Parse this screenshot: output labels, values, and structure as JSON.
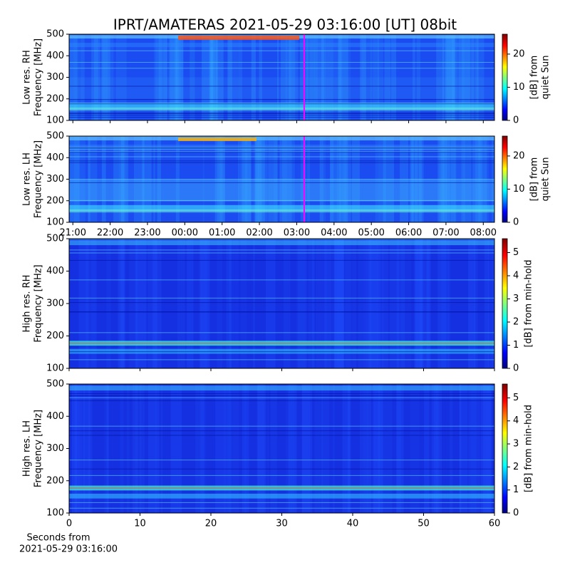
{
  "chart_data": [
    {
      "type": "heatmap",
      "title": "IPRT/AMATERAS 2021-05-29 03:16:00 [UT]   08bit",
      "ylabel": [
        "Low res. RH",
        "Frequency [MHz]"
      ],
      "xlim": [
        20.9,
        32.3
      ],
      "ylim": [
        100,
        500
      ],
      "yticks": [
        100,
        200,
        300,
        400,
        500
      ],
      "cursor": 27.2,
      "colorbar": {
        "label": [
          "[dB] from",
          "quiet Sun"
        ],
        "lim": [
          0,
          26
        ],
        "ticks": [
          0,
          10,
          20
        ]
      }
    },
    {
      "type": "heatmap",
      "ylabel": [
        "Low res. LH",
        "Frequency [MHz]"
      ],
      "xlim": [
        20.9,
        32.3
      ],
      "ylim": [
        100,
        500
      ],
      "yticks": [
        100,
        200,
        300,
        400,
        500
      ],
      "xticks": [
        {
          "value": 21,
          "label": "21:00"
        },
        {
          "value": 22,
          "label": "22:00"
        },
        {
          "value": 23,
          "label": "23:00"
        },
        {
          "value": 24,
          "label": "00:00"
        },
        {
          "value": 25,
          "label": "01:00"
        },
        {
          "value": 26,
          "label": "02:00"
        },
        {
          "value": 27,
          "label": "03:00"
        },
        {
          "value": 28,
          "label": "04:00"
        },
        {
          "value": 29,
          "label": "05:00"
        },
        {
          "value": 30,
          "label": "06:00"
        },
        {
          "value": 31,
          "label": "07:00"
        },
        {
          "value": 32,
          "label": "08:00"
        }
      ],
      "cursor": 27.2,
      "colorbar": {
        "label": [
          "[dB] from",
          "quiet Sun"
        ],
        "lim": [
          0,
          26
        ],
        "ticks": [
          0,
          10,
          20
        ]
      }
    },
    {
      "type": "heatmap",
      "ylabel": [
        "High res. RH",
        "Frequency [MHz]"
      ],
      "xlim": [
        0,
        60
      ],
      "ylim": [
        100,
        500
      ],
      "yticks": [
        100,
        200,
        300,
        400,
        500
      ],
      "colorbar": {
        "label": [
          "[dB] from min-hold"
        ],
        "lim": [
          0,
          5.6
        ],
        "ticks": [
          0,
          1,
          2,
          3,
          4,
          5
        ]
      }
    },
    {
      "type": "heatmap",
      "ylabel": [
        "High res. LH",
        "Frequency [MHz]"
      ],
      "xlim": [
        0,
        60
      ],
      "ylim": [
        100,
        500
      ],
      "yticks": [
        100,
        200,
        300,
        400,
        500
      ],
      "xticks": [
        0,
        10,
        20,
        30,
        40,
        50,
        60
      ],
      "xlabel": [
        "Seconds from",
        "2021-05-29 03:16:00"
      ],
      "colorbar": {
        "label": [
          "[dB] from min-hold"
        ],
        "lim": [
          0,
          5.6
        ],
        "ticks": [
          0,
          1,
          2,
          3,
          4,
          5
        ]
      }
    }
  ]
}
